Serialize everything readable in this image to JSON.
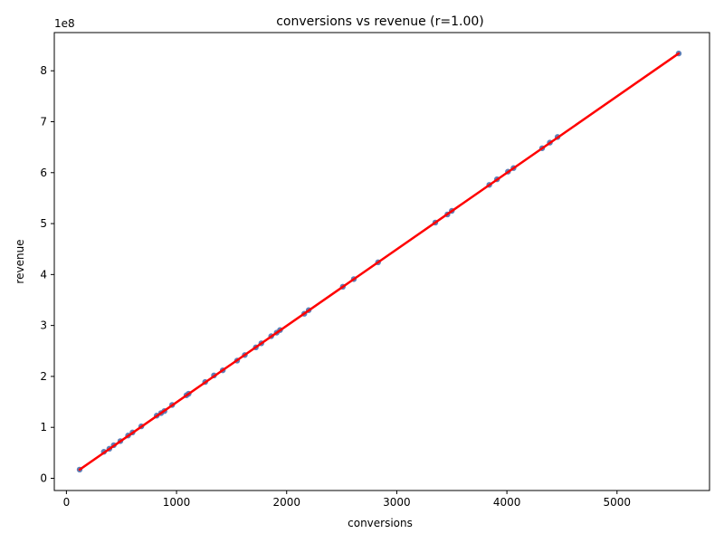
{
  "chart_data": {
    "type": "scatter",
    "title": "conversions vs revenue (r=1.00)",
    "xlabel": "conversions",
    "ylabel": "revenue",
    "y_offset_label": "1e8",
    "xlim": [
      -110,
      5840
    ],
    "ylim": [
      -0.24,
      8.75
    ],
    "x_ticks": [
      0,
      1000,
      2000,
      3000,
      4000,
      5000
    ],
    "x_tick_labels": [
      "0",
      "1000",
      "2000",
      "3000",
      "4000",
      "5000"
    ],
    "y_ticks": [
      0,
      1,
      2,
      3,
      4,
      5,
      6,
      7,
      8
    ],
    "y_tick_labels": [
      "0",
      "1",
      "2",
      "3",
      "4",
      "5",
      "6",
      "7",
      "8"
    ],
    "grid": false,
    "points": {
      "x": [
        120,
        340,
        390,
        430,
        490,
        560,
        600,
        680,
        820,
        860,
        890,
        960,
        1090,
        1110,
        1260,
        1340,
        1420,
        1550,
        1620,
        1720,
        1770,
        1860,
        1910,
        1940,
        2160,
        2200,
        2510,
        2610,
        2830,
        3350,
        3460,
        3500,
        3840,
        3910,
        4010,
        4060,
        4320,
        4390,
        4460,
        5560
      ],
      "y": [
        0.17,
        0.52,
        0.58,
        0.65,
        0.73,
        0.84,
        0.9,
        1.02,
        1.23,
        1.28,
        1.32,
        1.44,
        1.63,
        1.66,
        1.89,
        2.02,
        2.12,
        2.31,
        2.42,
        2.57,
        2.65,
        2.79,
        2.86,
        2.91,
        3.23,
        3.3,
        3.76,
        3.91,
        4.24,
        5.02,
        5.18,
        5.25,
        5.76,
        5.87,
        6.02,
        6.09,
        6.48,
        6.59,
        6.7,
        8.34
      ],
      "color": "#4c72b0"
    },
    "fit_line": {
      "x": [
        120,
        5560
      ],
      "y": [
        0.17,
        8.34
      ],
      "color": "#ff0000"
    }
  }
}
